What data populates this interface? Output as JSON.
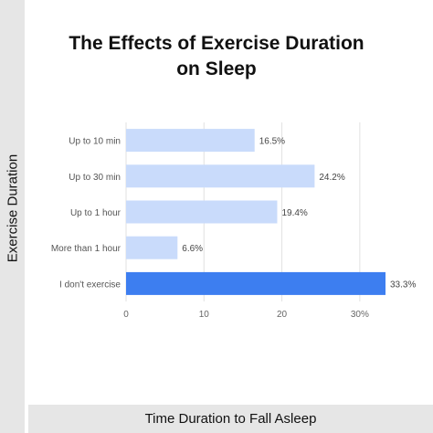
{
  "chart_data": {
    "type": "bar",
    "orientation": "horizontal",
    "title": "The Effects of Exercise Duration on Sleep",
    "title_lines": [
      "The Effects of Exercise Duration",
      "on Sleep"
    ],
    "xlabel": "Time Duration to Fall Asleep",
    "ylabel": "Exercise Duration",
    "categories": [
      "Up to 10 min",
      "Up to 30 min",
      "Up to 1 hour",
      "More than 1 hour",
      "I don't exercise"
    ],
    "values": [
      16.5,
      24.2,
      19.4,
      6.6,
      33.3
    ],
    "value_labels": [
      "16.5%",
      "24.2%",
      "19.4%",
      "6.6%",
      "33.3%"
    ],
    "xlim": [
      0,
      33.3
    ],
    "xticks": [
      0,
      10,
      20,
      30
    ],
    "xtick_labels": [
      "0",
      "10",
      "20",
      "30%"
    ],
    "grid": "vertical",
    "legend": "none",
    "colors": {
      "bar": "#c9dbfb",
      "highlight_bar": "#3d7ef0",
      "grid": "#e2e2e2",
      "label_panel": "#e6e6e6"
    },
    "highlight_index": 4
  }
}
